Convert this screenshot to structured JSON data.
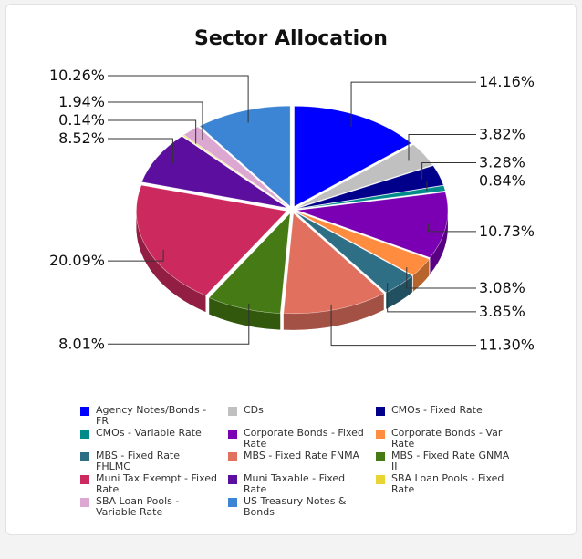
{
  "chart_data": {
    "type": "pie",
    "title": "Sector Allocation",
    "slices": [
      {
        "name": "Agency Notes/Bonds - FR",
        "value": 14.16,
        "label": "14.16%",
        "color": "#0000ff"
      },
      {
        "name": "CDs",
        "value": 3.82,
        "label": "3.82%",
        "color": "#c0c0c0"
      },
      {
        "name": "CMOs - Fixed Rate",
        "value": 3.28,
        "label": "3.28%",
        "color": "#00008b"
      },
      {
        "name": "CMOs - Variable Rate",
        "value": 0.84,
        "label": "0.84%",
        "color": "#008b8b"
      },
      {
        "name": "Corporate Bonds - Fixed Rate",
        "value": 10.73,
        "label": "10.73%",
        "color": "#7b00b4"
      },
      {
        "name": "Corporate Bonds - Var Rate",
        "value": 3.08,
        "label": "3.08%",
        "color": "#ff8c3f"
      },
      {
        "name": "MBS - Fixed Rate FHLMC",
        "value": 3.85,
        "label": "3.85%",
        "color": "#2e6f86"
      },
      {
        "name": "MBS - Fixed Rate FNMA",
        "value": 11.3,
        "label": "11.30%",
        "color": "#e2705f"
      },
      {
        "name": "MBS - Fixed Rate GNMA II",
        "value": 8.01,
        "label": "8.01%",
        "color": "#457a14"
      },
      {
        "name": "Muni Tax Exempt - Fixed Rate",
        "value": 20.09,
        "label": "20.09%",
        "color": "#cc2a5e"
      },
      {
        "name": "Muni Taxable - Fixed Rate",
        "value": 8.52,
        "label": "8.52%",
        "color": "#5c0f9f"
      },
      {
        "name": "SBA Loan Pools - Fixed Rate",
        "value": 0.14,
        "label": "0.14%",
        "color": "#e8d534"
      },
      {
        "name": "SBA Loan Pools - Variable Rate",
        "value": 1.94,
        "label": "1.94%",
        "color": "#dca8d1"
      },
      {
        "name": "US Treasury Notes & Bonds",
        "value": 10.26,
        "label": "10.26%",
        "color": "#3c84d4"
      }
    ],
    "legend": [
      {
        "label": "Agency Notes/Bonds - FR",
        "color": "#0000ff"
      },
      {
        "label": "CDs",
        "color": "#c0c0c0"
      },
      {
        "label": "CMOs - Fixed Rate",
        "color": "#00008b"
      },
      {
        "label": "CMOs - Variable Rate",
        "color": "#008b8b"
      },
      {
        "label": "Corporate Bonds - Fixed Rate",
        "color": "#7b00b4"
      },
      {
        "label": "Corporate Bonds - Var Rate",
        "color": "#ff8c3f"
      },
      {
        "label": "MBS - Fixed Rate FHLMC",
        "color": "#2e6f86"
      },
      {
        "label": "MBS - Fixed Rate FNMA",
        "color": "#e2705f"
      },
      {
        "label": "MBS - Fixed Rate GNMA II",
        "color": "#457a14"
      },
      {
        "label": "Muni Tax Exempt - Fixed Rate",
        "color": "#cc2a5e"
      },
      {
        "label": "Muni Taxable - Fixed Rate",
        "color": "#5c0f9f"
      },
      {
        "label": "SBA Loan Pools - Fixed Rate",
        "color": "#e8d534"
      },
      {
        "label": "SBA Loan Pools - Variable Rate",
        "color": "#dca8d1"
      },
      {
        "label": "US Treasury Notes & Bonds",
        "color": "#3c84d4"
      }
    ]
  }
}
